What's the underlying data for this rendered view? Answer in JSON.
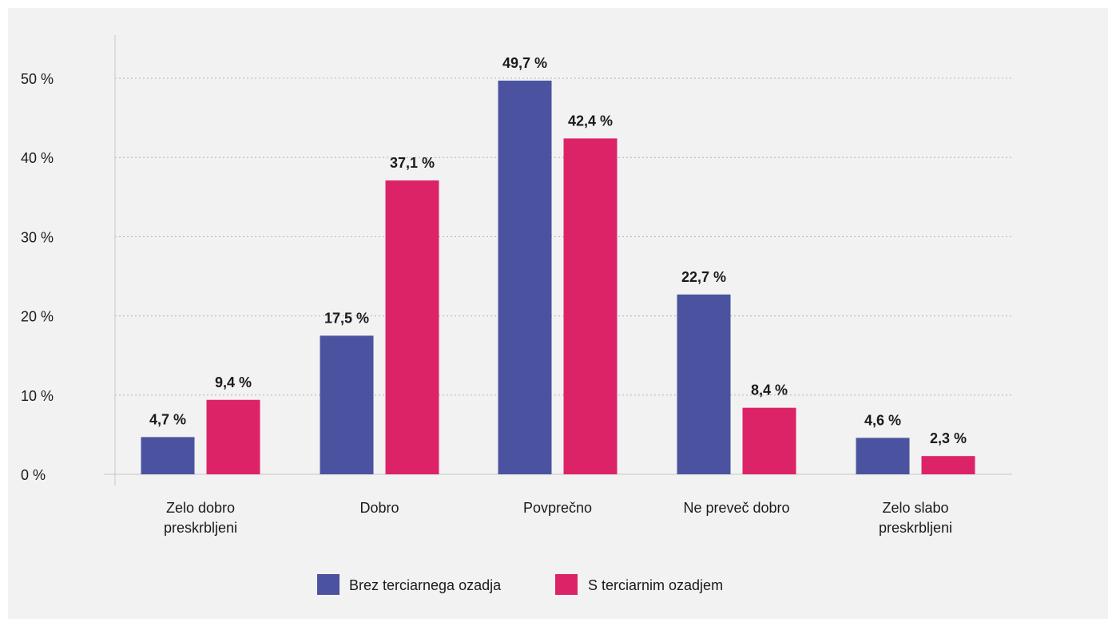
{
  "chart_data": {
    "type": "bar",
    "title": "",
    "xlabel": "",
    "ylabel": "",
    "ylim": [
      0,
      50
    ],
    "yticks": [
      "0 %",
      "10 %",
      "20 %",
      "30 %",
      "40 %",
      "50 %"
    ],
    "grid": true,
    "legend_position": "bottom-center",
    "categories": [
      [
        "Zelo dobro",
        "preskrbljeni"
      ],
      [
        "Dobro"
      ],
      [
        "Povprečno"
      ],
      [
        "Ne preveč dobro"
      ],
      [
        "Zelo slabo",
        "preskrbljeni"
      ]
    ],
    "series": [
      {
        "name": "Brez terciarnega ozadja",
        "color": "#4b53a0",
        "values": [
          4.7,
          17.5,
          49.7,
          22.7,
          4.6
        ],
        "labels": [
          "4,7 %",
          "17,5 %",
          "49,7 %",
          "22,7 %",
          "4,6 %"
        ]
      },
      {
        "name": "S terciarnim ozadjem",
        "color": "#dc2368",
        "values": [
          9.4,
          37.1,
          42.4,
          8.4,
          2.3
        ],
        "labels": [
          "9,4 %",
          "37,1 %",
          "42,4 %",
          "8,4 %",
          "2,3 %"
        ]
      }
    ]
  }
}
